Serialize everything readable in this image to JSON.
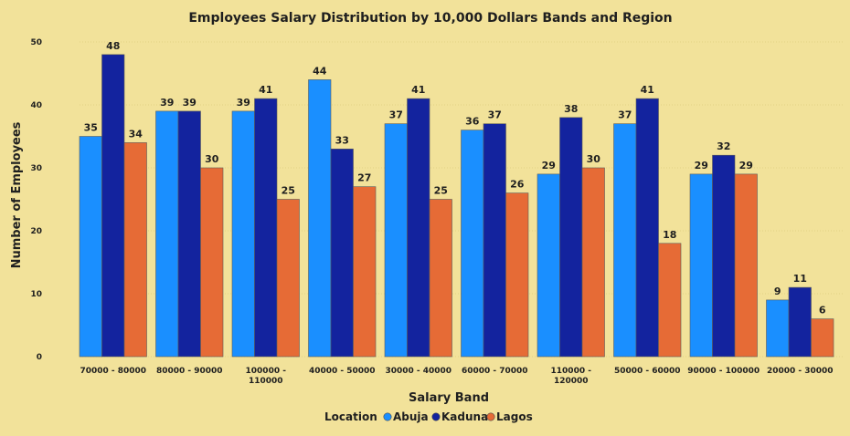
{
  "chart_data": {
    "type": "bar",
    "title": "Employees Salary Distribution by 10,000 Dollars Bands and Region",
    "xlabel": "Salary Band",
    "ylabel": "Number of Employees",
    "ylim": [
      0,
      50
    ],
    "yticks": [
      0,
      10,
      20,
      30,
      40,
      50
    ],
    "grid": true,
    "legend_title": "Location",
    "legend_placement": "bottom",
    "categories": [
      [
        "70000 - 80000"
      ],
      [
        "80000 - 90000"
      ],
      [
        "100000 -",
        "110000"
      ],
      [
        "40000 - 50000"
      ],
      [
        "30000 - 40000"
      ],
      [
        "60000 - 70000"
      ],
      [
        "110000 -",
        "120000"
      ],
      [
        "50000 - 60000"
      ],
      [
        "90000 - 100000"
      ],
      [
        "20000 - 30000"
      ]
    ],
    "series": [
      {
        "name": "Abuja",
        "color": "#1a8fff",
        "values": [
          35,
          39,
          39,
          44,
          37,
          36,
          29,
          37,
          29,
          9
        ]
      },
      {
        "name": "Kaduna",
        "color": "#13239e",
        "values": [
          48,
          39,
          41,
          33,
          41,
          37,
          38,
          41,
          32,
          11
        ]
      },
      {
        "name": "Lagos",
        "color": "#e66b36",
        "values": [
          34,
          30,
          25,
          27,
          25,
          26,
          30,
          18,
          29,
          6
        ]
      }
    ]
  }
}
